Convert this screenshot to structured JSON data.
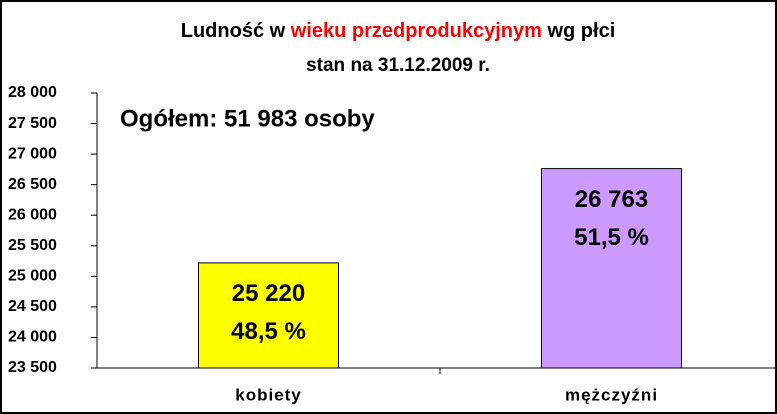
{
  "chart_data": {
    "type": "bar",
    "title_parts": [
      "Ludność w ",
      "wieku przedprodukcyjnym",
      " wg płci"
    ],
    "title_colors": [
      "#000000",
      "#ff0000",
      "#000000"
    ],
    "subtitle": "stan na 31.12.2009 r.",
    "annotation": "Ogółem:  51 983 osoby",
    "categories": [
      "kobiety",
      "mężczyźni"
    ],
    "values": [
      25220,
      26763
    ],
    "value_labels": [
      "25 220",
      "26 763"
    ],
    "share_labels": [
      "48,5 %",
      "51,5 %"
    ],
    "colors": [
      "#ffff00",
      "#cc99ff"
    ],
    "ylim": [
      23500,
      28000
    ],
    "yticks": [
      {
        "value": 23500,
        "label": "23 500"
      },
      {
        "value": 24000,
        "label": "24 000"
      },
      {
        "value": 24500,
        "label": "24 500"
      },
      {
        "value": 25000,
        "label": "25 000"
      },
      {
        "value": 25500,
        "label": "25 500"
      },
      {
        "value": 26000,
        "label": "26 000"
      },
      {
        "value": 26500,
        "label": "26 500"
      },
      {
        "value": 27000,
        "label": "27 000"
      },
      {
        "value": 27500,
        "label": "27 500"
      },
      {
        "value": 28000,
        "label": "28 000"
      }
    ]
  }
}
